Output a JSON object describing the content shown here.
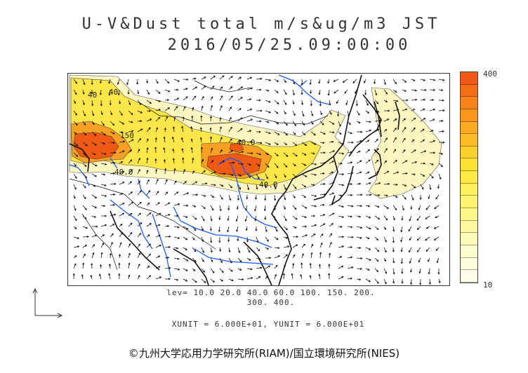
{
  "title": {
    "line1": "U-V&Dust total m/s&ug/m3 JST",
    "line2": "2016/05/25.09:00:00"
  },
  "colorbar": {
    "max_label": "400",
    "min_label": "10",
    "colors": [
      "#f05a14",
      "#f56e14",
      "#f7821a",
      "#f8961c",
      "#faaa1e",
      "#fbbd22",
      "#fcd02a",
      "#fde034",
      "#feea44",
      "#fef05a",
      "#fef470",
      "#fef788",
      "#fef9a0",
      "#fefab8",
      "#fefbcc",
      "#fffcdc",
      "#fffde8"
    ]
  },
  "contour_labels": [
    "40",
    "150",
    "40.0",
    "40.0",
    "40.0",
    "40"
  ],
  "levels": {
    "line1": "lev= 10.0 20.0 40.0 60.0 100. 150. 200.",
    "line2": "300. 400."
  },
  "units": "XUNIT = 6.000E+01, YUNIT = 6.000E+01",
  "copyright": "©九州大学応用力学研究所(RIAM)/国立環境研究所(NIES)",
  "colors": {
    "dust_light": "#fdf6c0",
    "dust_yellow": "#fde64a",
    "dust_orange": "#f8a024",
    "dust_red": "#f05a14",
    "coastline": "#111111",
    "rivers": "#1a5cff"
  }
}
